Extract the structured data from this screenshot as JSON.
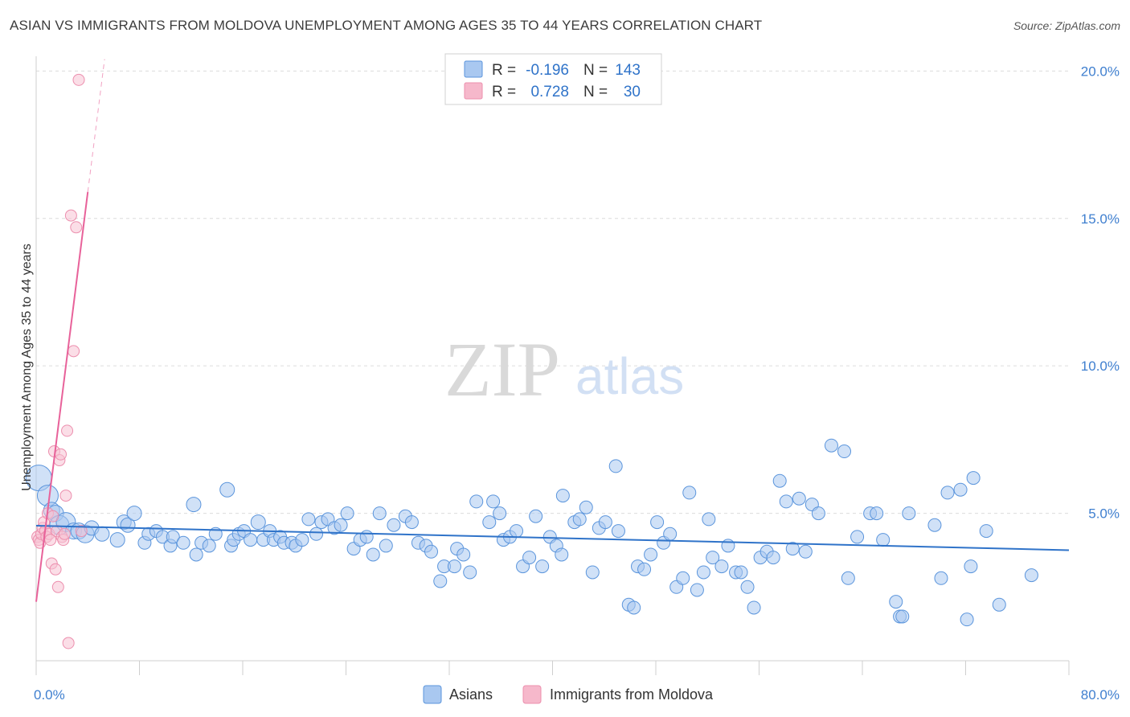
{
  "title": "ASIAN VS IMMIGRANTS FROM MOLDOVA UNEMPLOYMENT AMONG AGES 35 TO 44 YEARS CORRELATION CHART",
  "source": "Source: ZipAtlas.com",
  "watermark": {
    "zip": "ZIP",
    "atlas": "atlas"
  },
  "stats_box": {
    "rows": [
      {
        "r_label": "R =",
        "r_value": "-0.196",
        "n_label": "N =",
        "n_value": "143",
        "color": "#a9c8f0"
      },
      {
        "r_label": "R =",
        "r_value": "0.728",
        "n_label": "N =",
        "n_value": "30",
        "color": "#f6b8cb"
      }
    ]
  },
  "legend": [
    {
      "label": "Asians",
      "color": "#a9c8f0"
    },
    {
      "label": "Immigrants from Moldova",
      "color": "#f6b8cb"
    }
  ],
  "colors": {
    "asians_fill": "#a9c8f0",
    "asians_stroke": "#5b95dc",
    "asians_line": "#2f73c9",
    "moldova_fill": "#f8c3d3",
    "moldova_stroke": "#ec8fae",
    "moldova_line": "#e8629a",
    "tick_label": "#3f7fcf",
    "grid": "#dcdcdc"
  },
  "chart_data": {
    "type": "scatter",
    "title": "ASIAN VS IMMIGRANTS FROM MOLDOVA UNEMPLOYMENT AMONG AGES 35 TO 44 YEARS CORRELATION CHART",
    "xlabel": "",
    "ylabel": "Unemployment Among Ages 35 to 44 years",
    "xlim": [
      0,
      80
    ],
    "ylim": [
      0,
      20.5
    ],
    "x_tick_labels": [
      "0.0%",
      "80.0%"
    ],
    "y_ticks": [
      5,
      10,
      15,
      20
    ],
    "y_tick_labels": [
      "5.0%",
      "10.0%",
      "15.0%",
      "20.0%"
    ],
    "grid": true,
    "legend_position": "bottom-center",
    "series": [
      {
        "name": "Asians",
        "trend": {
          "x": [
            0,
            80
          ],
          "y": [
            4.58,
            3.75
          ]
        },
        "points": [
          [
            0.2,
            6.2,
            16
          ],
          [
            0.9,
            5.6,
            13
          ],
          [
            1.2,
            5.1,
            10
          ],
          [
            1.5,
            5.0,
            10
          ],
          [
            1.8,
            4.6,
            12
          ],
          [
            2.3,
            4.7,
            12
          ],
          [
            2.9,
            4.4,
            10
          ],
          [
            3.3,
            4.4,
            10
          ],
          [
            3.8,
            4.3,
            11
          ],
          [
            4.3,
            4.5,
            9
          ],
          [
            5.1,
            4.3,
            9
          ],
          [
            6.3,
            4.1,
            9
          ],
          [
            6.8,
            4.7,
            9
          ],
          [
            7.1,
            4.6,
            9
          ],
          [
            7.6,
            5.0,
            9
          ],
          [
            8.4,
            4.0,
            8
          ],
          [
            8.7,
            4.3,
            8
          ],
          [
            9.3,
            4.4,
            8
          ],
          [
            9.8,
            4.2,
            8
          ],
          [
            10.4,
            3.9,
            8
          ],
          [
            10.6,
            4.2,
            8
          ],
          [
            11.4,
            4.0,
            8
          ],
          [
            12.2,
            5.3,
            9
          ],
          [
            12.4,
            3.6,
            8
          ],
          [
            12.8,
            4.0,
            8
          ],
          [
            13.4,
            3.9,
            8
          ],
          [
            13.9,
            4.3,
            8
          ],
          [
            14.8,
            5.8,
            9
          ],
          [
            15.1,
            3.9,
            8
          ],
          [
            15.3,
            4.1,
            8
          ],
          [
            15.7,
            4.3,
            8
          ],
          [
            16.1,
            4.4,
            8
          ],
          [
            16.6,
            4.1,
            8
          ],
          [
            17.2,
            4.7,
            9
          ],
          [
            17.6,
            4.1,
            8
          ],
          [
            18.1,
            4.4,
            8
          ],
          [
            18.4,
            4.1,
            8
          ],
          [
            18.9,
            4.2,
            8
          ],
          [
            19.2,
            4.0,
            8
          ],
          [
            19.8,
            4.0,
            8
          ],
          [
            20.1,
            3.9,
            8
          ],
          [
            20.6,
            4.1,
            8
          ],
          [
            21.1,
            4.8,
            8
          ],
          [
            21.7,
            4.3,
            8
          ],
          [
            22.1,
            4.7,
            8
          ],
          [
            22.6,
            4.8,
            8
          ],
          [
            23.1,
            4.5,
            8
          ],
          [
            23.6,
            4.6,
            8
          ],
          [
            24.1,
            5.0,
            8
          ],
          [
            24.6,
            3.8,
            8
          ],
          [
            25.1,
            4.1,
            8
          ],
          [
            25.6,
            4.2,
            8
          ],
          [
            26.1,
            3.6,
            8
          ],
          [
            26.6,
            5.0,
            8
          ],
          [
            27.1,
            3.9,
            8
          ],
          [
            27.7,
            4.6,
            8
          ],
          [
            28.6,
            4.9,
            8
          ],
          [
            29.1,
            4.7,
            8
          ],
          [
            29.6,
            4.0,
            8
          ],
          [
            30.2,
            3.9,
            8
          ],
          [
            30.6,
            3.7,
            8
          ],
          [
            31.3,
            2.7,
            8
          ],
          [
            31.6,
            3.2,
            8
          ],
          [
            32.4,
            3.2,
            8
          ],
          [
            32.6,
            3.8,
            8
          ],
          [
            33.1,
            3.6,
            8
          ],
          [
            33.6,
            3.0,
            8
          ],
          [
            34.1,
            5.4,
            8
          ],
          [
            35.1,
            4.7,
            8
          ],
          [
            35.4,
            5.4,
            8
          ],
          [
            35.9,
            5.0,
            8
          ],
          [
            36.2,
            4.1,
            8
          ],
          [
            36.7,
            4.2,
            8
          ],
          [
            37.2,
            4.4,
            8
          ],
          [
            37.7,
            3.2,
            8
          ],
          [
            38.2,
            3.5,
            8
          ],
          [
            38.7,
            4.9,
            8
          ],
          [
            39.2,
            3.2,
            8
          ],
          [
            39.8,
            4.2,
            8
          ],
          [
            40.3,
            3.9,
            8
          ],
          [
            40.7,
            3.6,
            8
          ],
          [
            40.8,
            5.6,
            8
          ],
          [
            41.7,
            4.7,
            8
          ],
          [
            42.1,
            4.8,
            8
          ],
          [
            42.6,
            5.2,
            8
          ],
          [
            43.1,
            3.0,
            8
          ],
          [
            43.6,
            4.5,
            8
          ],
          [
            44.1,
            4.7,
            8
          ],
          [
            44.9,
            6.6,
            8
          ],
          [
            45.1,
            4.4,
            8
          ],
          [
            45.9,
            1.9,
            8
          ],
          [
            46.3,
            1.8,
            8
          ],
          [
            46.6,
            3.2,
            8
          ],
          [
            47.1,
            3.1,
            8
          ],
          [
            47.6,
            3.6,
            8
          ],
          [
            48.1,
            4.7,
            8
          ],
          [
            48.6,
            4.0,
            8
          ],
          [
            49.1,
            4.3,
            8
          ],
          [
            49.6,
            2.5,
            8
          ],
          [
            50.1,
            2.8,
            8
          ],
          [
            50.6,
            5.7,
            8
          ],
          [
            51.2,
            2.4,
            8
          ],
          [
            51.7,
            3.0,
            8
          ],
          [
            52.1,
            4.8,
            8
          ],
          [
            52.4,
            3.5,
            8
          ],
          [
            53.1,
            3.2,
            8
          ],
          [
            53.6,
            3.9,
            8
          ],
          [
            54.2,
            3.0,
            8
          ],
          [
            54.6,
            3.0,
            8
          ],
          [
            55.1,
            2.5,
            8
          ],
          [
            55.6,
            1.8,
            8
          ],
          [
            56.1,
            3.5,
            8
          ],
          [
            56.6,
            3.7,
            8
          ],
          [
            57.1,
            3.5,
            8
          ],
          [
            57.6,
            6.1,
            8
          ],
          [
            58.1,
            5.4,
            8
          ],
          [
            58.6,
            3.8,
            8
          ],
          [
            59.1,
            5.5,
            8
          ],
          [
            59.6,
            3.7,
            8
          ],
          [
            60.1,
            5.3,
            8
          ],
          [
            60.6,
            5.0,
            8
          ],
          [
            61.6,
            7.3,
            8
          ],
          [
            62.6,
            7.1,
            8
          ],
          [
            62.9,
            2.8,
            8
          ],
          [
            63.6,
            4.2,
            8
          ],
          [
            64.6,
            5.0,
            8
          ],
          [
            65.1,
            5.0,
            8
          ],
          [
            65.6,
            4.1,
            8
          ],
          [
            66.6,
            2.0,
            8
          ],
          [
            66.9,
            1.5,
            8
          ],
          [
            67.1,
            1.5,
            8
          ],
          [
            67.6,
            5.0,
            8
          ],
          [
            69.6,
            4.6,
            8
          ],
          [
            70.1,
            2.8,
            8
          ],
          [
            70.6,
            5.7,
            8
          ],
          [
            71.6,
            5.8,
            8
          ],
          [
            72.1,
            1.4,
            8
          ],
          [
            72.6,
            6.2,
            8
          ],
          [
            72.4,
            3.2,
            8
          ],
          [
            73.6,
            4.4,
            8
          ],
          [
            74.6,
            1.9,
            8
          ],
          [
            77.1,
            2.9,
            8
          ]
        ]
      },
      {
        "name": "Immigrants from Moldova",
        "trend": {
          "x": [
            0,
            4.0
          ],
          "y": [
            2.0,
            15.9
          ]
        },
        "trend_dashed": {
          "x": [
            4.0,
            5.3
          ],
          "y": [
            15.9,
            20.4
          ]
        },
        "points": [
          [
            0.1,
            4.2,
            7
          ],
          [
            0.2,
            4.1,
            7
          ],
          [
            0.3,
            4.0,
            7
          ],
          [
            0.4,
            4.3,
            7
          ],
          [
            0.5,
            4.5,
            7
          ],
          [
            0.6,
            4.7,
            7
          ],
          [
            0.7,
            4.4,
            7
          ],
          [
            0.8,
            4.2,
            7
          ],
          [
            0.9,
            5.0,
            7
          ],
          [
            1.0,
            4.3,
            7
          ],
          [
            1.1,
            4.1,
            7
          ],
          [
            1.2,
            3.3,
            7
          ],
          [
            1.3,
            4.9,
            7
          ],
          [
            1.4,
            7.1,
            7
          ],
          [
            1.5,
            3.1,
            7
          ],
          [
            1.6,
            4.4,
            7
          ],
          [
            1.7,
            2.5,
            7
          ],
          [
            1.8,
            6.8,
            7
          ],
          [
            1.9,
            7.0,
            7
          ],
          [
            2.0,
            4.2,
            7
          ],
          [
            2.1,
            4.1,
            7
          ],
          [
            2.2,
            4.3,
            7
          ],
          [
            2.3,
            5.6,
            7
          ],
          [
            2.4,
            7.8,
            7
          ],
          [
            2.5,
            0.6,
            7
          ],
          [
            2.7,
            15.1,
            7
          ],
          [
            2.9,
            10.5,
            7
          ],
          [
            3.1,
            14.7,
            7
          ],
          [
            3.3,
            19.7,
            7
          ],
          [
            3.5,
            4.4,
            7
          ]
        ]
      }
    ]
  }
}
